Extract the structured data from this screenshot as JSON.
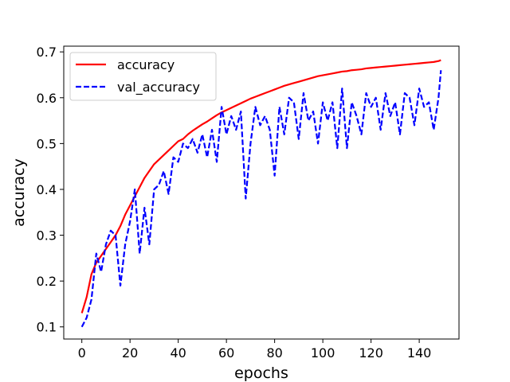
{
  "chart_data": {
    "type": "line",
    "title": "",
    "xlabel": "epochs",
    "ylabel": "accuracy",
    "xlim": [
      -7.5,
      156.5
    ],
    "ylim": [
      0.0735,
      0.7125
    ],
    "xticks": [
      0,
      20,
      40,
      60,
      80,
      100,
      120,
      140
    ],
    "yticks": [
      0.1,
      0.2,
      0.3,
      0.4,
      0.5,
      0.6,
      0.7
    ],
    "xtick_labels": [
      "0",
      "20",
      "40",
      "60",
      "80",
      "100",
      "120",
      "140"
    ],
    "ytick_labels": [
      "0.1",
      "0.2",
      "0.3",
      "0.4",
      "0.5",
      "0.6",
      "0.7"
    ],
    "grid": false,
    "legend_position": "top-left",
    "series": [
      {
        "name": "accuracy",
        "color": "#ff0000",
        "style": "solid",
        "x": [
          0,
          2,
          4,
          6,
          8,
          10,
          12,
          14,
          16,
          18,
          20,
          22,
          24,
          26,
          28,
          30,
          32,
          34,
          36,
          38,
          40,
          42,
          44,
          46,
          48,
          50,
          52,
          54,
          56,
          58,
          60,
          62,
          64,
          66,
          68,
          70,
          72,
          74,
          76,
          78,
          80,
          82,
          84,
          86,
          88,
          90,
          92,
          94,
          96,
          98,
          100,
          102,
          104,
          106,
          108,
          110,
          112,
          114,
          116,
          118,
          120,
          122,
          124,
          126,
          128,
          130,
          132,
          134,
          136,
          138,
          140,
          142,
          144,
          146,
          148,
          149
        ],
        "values": [
          0.13,
          0.165,
          0.215,
          0.24,
          0.255,
          0.27,
          0.285,
          0.3,
          0.32,
          0.345,
          0.365,
          0.385,
          0.405,
          0.425,
          0.44,
          0.455,
          0.465,
          0.475,
          0.485,
          0.495,
          0.505,
          0.51,
          0.52,
          0.528,
          0.535,
          0.542,
          0.548,
          0.555,
          0.562,
          0.568,
          0.573,
          0.578,
          0.583,
          0.588,
          0.593,
          0.598,
          0.602,
          0.606,
          0.61,
          0.614,
          0.618,
          0.622,
          0.626,
          0.629,
          0.632,
          0.635,
          0.638,
          0.641,
          0.644,
          0.647,
          0.649,
          0.651,
          0.653,
          0.655,
          0.657,
          0.658,
          0.66,
          0.661,
          0.662,
          0.664,
          0.665,
          0.666,
          0.667,
          0.668,
          0.669,
          0.67,
          0.671,
          0.672,
          0.673,
          0.674,
          0.675,
          0.676,
          0.677,
          0.678,
          0.68,
          0.682
        ]
      },
      {
        "name": "val_accuracy",
        "color": "#0000ff",
        "style": "dashed",
        "x": [
          0,
          2,
          4,
          6,
          8,
          10,
          12,
          14,
          16,
          18,
          20,
          22,
          24,
          26,
          28,
          30,
          32,
          34,
          36,
          38,
          40,
          42,
          44,
          46,
          48,
          50,
          52,
          54,
          56,
          58,
          60,
          62,
          64,
          66,
          68,
          70,
          72,
          74,
          76,
          78,
          80,
          82,
          84,
          86,
          88,
          90,
          92,
          94,
          96,
          98,
          100,
          102,
          104,
          106,
          108,
          110,
          112,
          114,
          116,
          118,
          120,
          122,
          124,
          126,
          128,
          130,
          132,
          134,
          136,
          138,
          140,
          142,
          144,
          146,
          148,
          149
        ],
        "values": [
          0.1,
          0.12,
          0.16,
          0.26,
          0.22,
          0.28,
          0.31,
          0.3,
          0.19,
          0.28,
          0.33,
          0.4,
          0.26,
          0.36,
          0.28,
          0.4,
          0.41,
          0.44,
          0.39,
          0.47,
          0.46,
          0.5,
          0.49,
          0.51,
          0.48,
          0.52,
          0.47,
          0.53,
          0.46,
          0.58,
          0.52,
          0.56,
          0.53,
          0.57,
          0.38,
          0.5,
          0.58,
          0.54,
          0.56,
          0.53,
          0.43,
          0.58,
          0.52,
          0.6,
          0.59,
          0.51,
          0.61,
          0.55,
          0.57,
          0.5,
          0.59,
          0.55,
          0.59,
          0.49,
          0.62,
          0.49,
          0.59,
          0.56,
          0.52,
          0.61,
          0.58,
          0.6,
          0.53,
          0.61,
          0.56,
          0.59,
          0.52,
          0.61,
          0.6,
          0.54,
          0.62,
          0.58,
          0.59,
          0.53,
          0.6,
          0.66
        ]
      }
    ]
  }
}
